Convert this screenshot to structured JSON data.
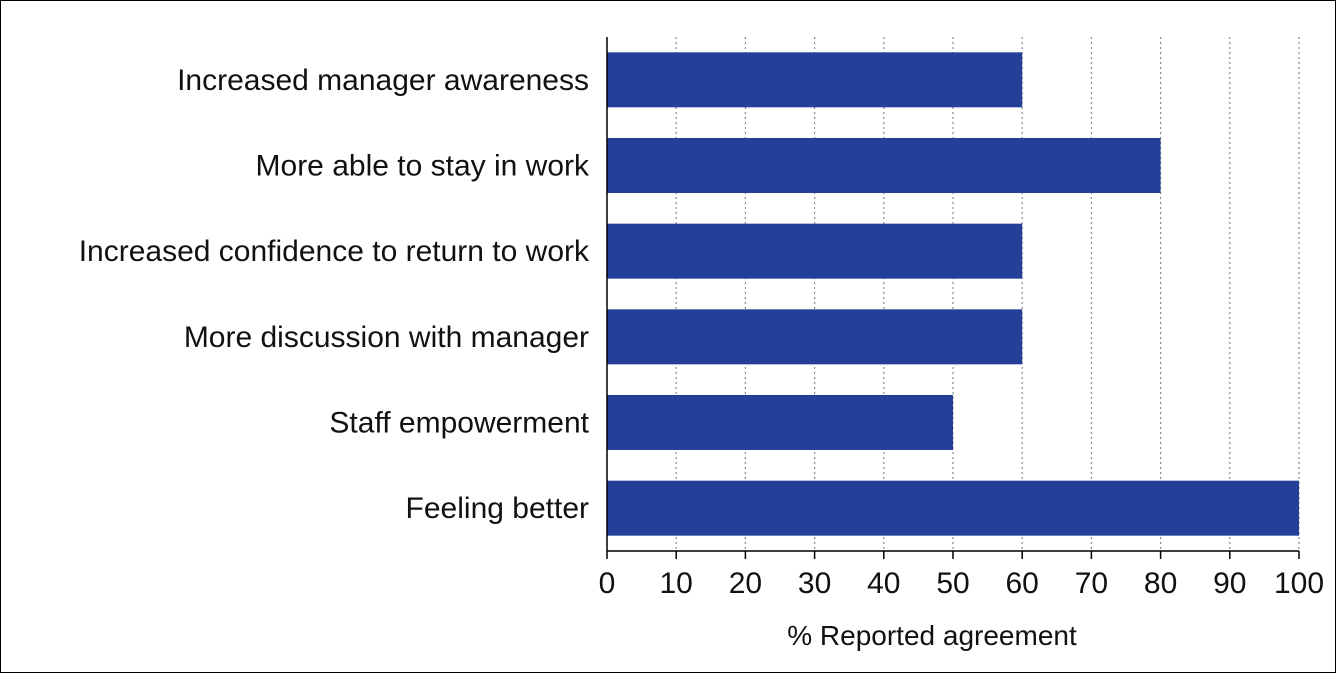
{
  "chart_data": {
    "type": "bar",
    "orientation": "horizontal",
    "categories": [
      "Increased manager awareness",
      "More able to stay in work",
      "Increased confidence to return to work",
      "More discussion with manager",
      "Staff empowerment",
      "Feeling better"
    ],
    "values": [
      60,
      80,
      60,
      60,
      50,
      100
    ],
    "xlabel": "% Reported agreement",
    "ylabel": "",
    "xlim": [
      0,
      100
    ],
    "xticks": [
      0,
      10,
      20,
      30,
      40,
      50,
      60,
      70,
      80,
      90,
      100
    ],
    "grid": "vertical-dotted",
    "bar_color": "#233f97"
  }
}
